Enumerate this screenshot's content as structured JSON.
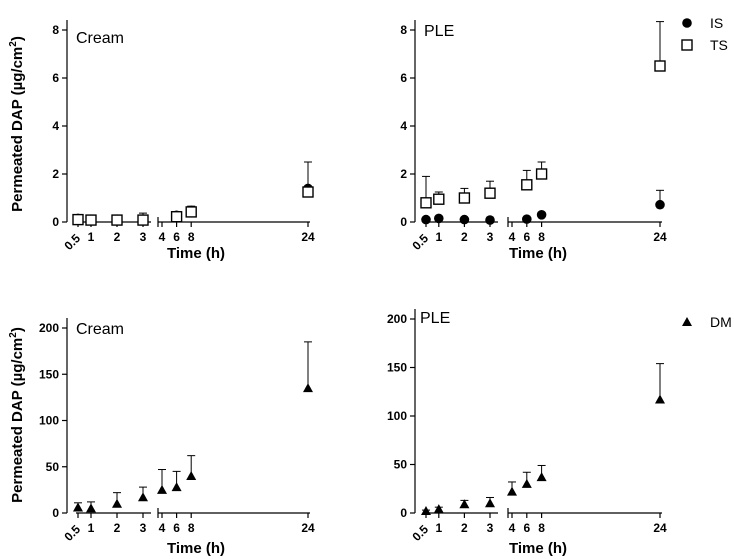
{
  "chart_data": [
    {
      "type": "scatter",
      "title": "Cream",
      "xlabel": "Time (h)",
      "ylabel": "Permeated DAP (µg/cm²)",
      "xticks": [
        "0.5",
        "1",
        "2",
        "3",
        "4",
        "6",
        "8",
        "24"
      ],
      "yticks": [
        "0",
        "2",
        "4",
        "6",
        "8"
      ],
      "ylim": [
        0,
        9
      ],
      "series": [
        {
          "name": "IS",
          "marker": "circle",
          "x": [
            0.5,
            1,
            2,
            3,
            6,
            8,
            24
          ],
          "y": [
            0.15,
            0.12,
            0.12,
            0.12,
            0.28,
            0.48,
            1.4
          ],
          "err": [
            0.08,
            0.08,
            0.1,
            0.25,
            0.15,
            0.18,
            1.1
          ]
        },
        {
          "name": "TS",
          "marker": "square",
          "x": [
            0.5,
            1,
            2,
            3,
            6,
            8,
            24
          ],
          "y": [
            0.1,
            0.08,
            0.08,
            0.08,
            0.22,
            0.42,
            1.25
          ],
          "err": [
            0.05,
            0.05,
            0.05,
            0.05,
            0.1,
            0.12,
            0.1
          ]
        }
      ]
    },
    {
      "type": "scatter",
      "title": "PLE",
      "xlabel": "Time (h)",
      "ylabel": "",
      "xticks": [
        "0.5",
        "1",
        "2",
        "3",
        "4",
        "6",
        "8",
        "24"
      ],
      "yticks": [
        "0",
        "2",
        "4",
        "6",
        "8"
      ],
      "ylim": [
        0,
        9
      ],
      "series": [
        {
          "name": "IS",
          "marker": "circle",
          "x": [
            0.5,
            1,
            2,
            3,
            6,
            8,
            24
          ],
          "y": [
            0.1,
            0.15,
            0.1,
            0.08,
            0.12,
            0.3,
            0.72
          ],
          "err": [
            0.03,
            0.03,
            0.03,
            0.03,
            0.05,
            0.1,
            0.6
          ]
        },
        {
          "name": "TS",
          "marker": "square",
          "x": [
            0.5,
            1,
            2,
            3,
            6,
            8,
            24
          ],
          "y": [
            0.8,
            0.95,
            1.0,
            1.2,
            1.55,
            2.0,
            6.5
          ],
          "err": [
            1.1,
            0.3,
            0.4,
            0.5,
            0.6,
            0.5,
            1.85
          ]
        }
      ]
    },
    {
      "type": "scatter",
      "title": "Cream",
      "xlabel": "Time (h)",
      "ylabel": "Permeated DAP (µg/cm²)",
      "xticks": [
        "0.5",
        "1",
        "2",
        "3",
        "4",
        "6",
        "8",
        "24"
      ],
      "yticks": [
        "0",
        "50",
        "100",
        "150",
        "200"
      ],
      "ylim": [
        0,
        200
      ],
      "series": [
        {
          "name": "DM",
          "marker": "triangle",
          "x": [
            0.5,
            1,
            2,
            3,
            4,
            6,
            8,
            24
          ],
          "y": [
            6,
            5,
            10,
            17,
            25,
            28,
            40,
            135
          ],
          "err": [
            5,
            7,
            12,
            11,
            22,
            17,
            22,
            50
          ]
        }
      ]
    },
    {
      "type": "scatter",
      "title": "PLE",
      "xlabel": "Time (h)",
      "ylabel": "",
      "xticks": [
        "0.5",
        "1",
        "2",
        "3",
        "4",
        "6",
        "8",
        "24"
      ],
      "yticks": [
        "0",
        "50",
        "100",
        "150",
        "200"
      ],
      "ylim": [
        0,
        200
      ],
      "series": [
        {
          "name": "DM",
          "marker": "triangle",
          "x": [
            0.5,
            1,
            2,
            3,
            4,
            6,
            8,
            24
          ],
          "y": [
            2,
            4,
            9,
            10,
            22,
            30,
            37,
            117
          ],
          "err": [
            1,
            2,
            4,
            6,
            10,
            12,
            12,
            37
          ]
        }
      ]
    }
  ],
  "legends": [
    {
      "items": [
        {
          "label": "IS",
          "marker": "circle"
        },
        {
          "label": "TS",
          "marker": "square"
        }
      ]
    },
    {
      "items": [
        {
          "label": "DM",
          "marker": "triangle"
        }
      ]
    }
  ]
}
